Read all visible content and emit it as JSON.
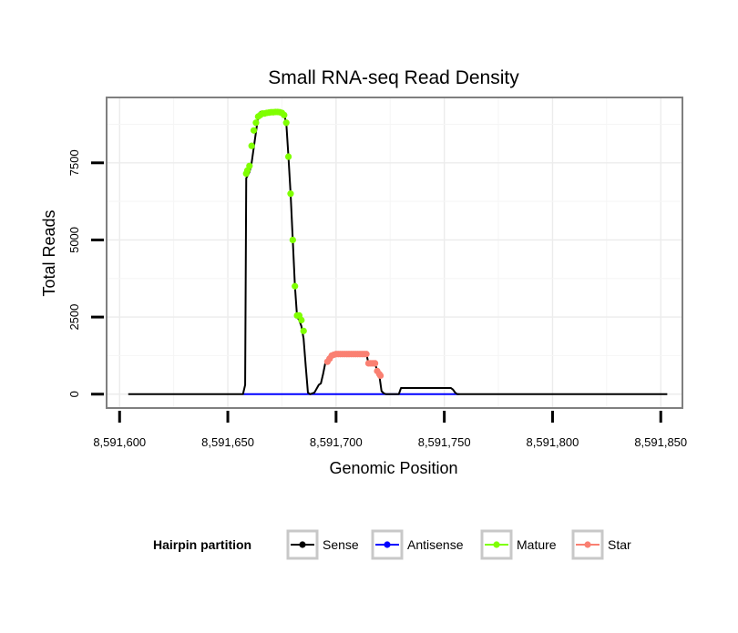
{
  "chart_data": {
    "type": "line",
    "title": "Small RNA-seq Read Density",
    "xlabel": "Genomic Position",
    "ylabel": "Total Reads",
    "xlim": [
      8591594,
      8591860
    ],
    "ylim": [
      -450,
      9620
    ],
    "x_ticks": [
      8591600,
      8591650,
      8591700,
      8591750,
      8591800,
      8591850
    ],
    "x_tick_labels": [
      "8,591,600",
      "8,591,650",
      "8,591,700",
      "8,591,750",
      "8,591,800",
      "8,591,850"
    ],
    "y_ticks": [
      0,
      2500,
      5000,
      7500
    ],
    "y_tick_labels": [
      "0",
      "2500",
      "5000",
      "7500"
    ],
    "grid": true,
    "legend": {
      "title": "Hairpin partition",
      "position": "bottom",
      "entries": [
        "Sense",
        "Antisense",
        "Mature",
        "Star"
      ]
    },
    "series": [
      {
        "name": "Sense",
        "color": "#000000",
        "style": "line",
        "x": [
          8591604,
          8591657,
          8591658,
          8591658.5,
          8591660,
          8591661,
          8591662,
          8591663,
          8591664,
          8591665,
          8591668,
          8591670,
          8591672,
          8591674,
          8591675,
          8591676,
          8591677,
          8591678,
          8591679,
          8591680,
          8591681,
          8591682,
          8591683,
          8591684,
          8591685,
          8591686,
          8591687,
          8591688,
          8591690,
          8591692,
          8591693,
          8591694,
          8591695,
          8591696,
          8591697,
          8591698,
          8591699,
          8591700,
          8591705,
          8591710,
          8591713,
          8591714,
          8591715,
          8591716,
          8591717,
          8591718,
          8591719,
          8591720,
          8591721,
          8591722,
          8591723,
          8591725,
          8591729,
          8591730,
          8591731,
          8591740,
          8591750,
          8591753,
          8591754,
          8591755,
          8591756,
          8591757,
          8591770,
          8591853
        ],
        "y": [
          0,
          0,
          300,
          7000,
          7200,
          7500,
          8000,
          8500,
          9000,
          9150,
          9170,
          9180,
          9180,
          9170,
          9150,
          9050,
          8800,
          7700,
          6500,
          5000,
          3500,
          2500,
          2400,
          2200,
          1800,
          900,
          50,
          0,
          50,
          300,
          350,
          650,
          1000,
          1150,
          1250,
          1300,
          1300,
          1300,
          1300,
          1300,
          1300,
          1300,
          1000,
          1000,
          1000,
          1000,
          750,
          600,
          100,
          30,
          0,
          0,
          0,
          200,
          200,
          200,
          200,
          200,
          150,
          50,
          0,
          0,
          0,
          0
        ]
      },
      {
        "name": "Antisense",
        "color": "#0000ff",
        "style": "line",
        "x": [
          8591657,
          8591757
        ],
        "y": [
          0,
          0
        ]
      },
      {
        "name": "Mature",
        "color": "#7fff00",
        "style": "points",
        "x": [
          8591658.5,
          8591659,
          8591660,
          8591661,
          8591662,
          8591663,
          8591664,
          8591665,
          8591666,
          8591667,
          8591668,
          8591669,
          8591670,
          8591671,
          8591672,
          8591673,
          8591674,
          8591675,
          8591676,
          8591677,
          8591678,
          8591679,
          8591680,
          8591681,
          8591682,
          8591683,
          8591684,
          8591685
        ],
        "y": [
          7150,
          7250,
          7400,
          8050,
          8550,
          8800,
          9000,
          9050,
          9100,
          9100,
          9120,
          9130,
          9140,
          9140,
          9150,
          9150,
          9140,
          9120,
          9050,
          8800,
          7700,
          6500,
          5000,
          3500,
          2550,
          2550,
          2400,
          2050
        ]
      },
      {
        "name": "Star",
        "color": "#fa8072",
        "style": "points",
        "x": [
          8591696,
          8591697,
          8591698,
          8591699,
          8591700,
          8591701,
          8591702,
          8591703,
          8591704,
          8591705,
          8591706,
          8591707,
          8591708,
          8591709,
          8591710,
          8591711,
          8591712,
          8591713,
          8591714,
          8591715,
          8591716,
          8591717,
          8591718,
          8591719,
          8591720,
          8591720.5
        ],
        "y": [
          1050,
          1150,
          1250,
          1280,
          1300,
          1300,
          1300,
          1300,
          1300,
          1300,
          1300,
          1300,
          1300,
          1300,
          1300,
          1300,
          1300,
          1300,
          1300,
          1000,
          1000,
          1000,
          1000,
          750,
          650,
          600
        ]
      }
    ]
  }
}
